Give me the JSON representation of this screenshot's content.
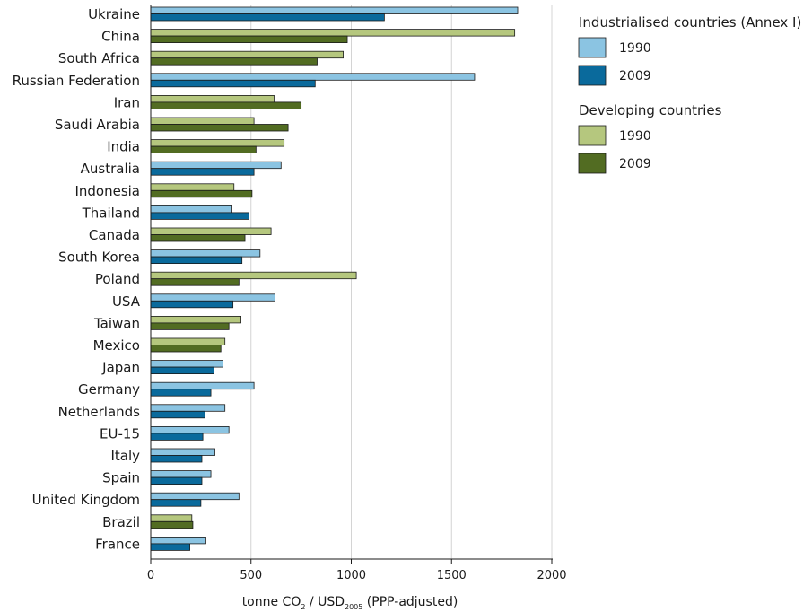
{
  "chart_data": {
    "type": "bar",
    "orientation": "horizontal",
    "categories": [
      "Ukraine",
      "China",
      "South Africa",
      "Russian Federation",
      "Iran",
      "Saudi Arabia",
      "India",
      "Australia",
      "Indonesia",
      "Thailand",
      "Canada",
      "South Korea",
      "Poland",
      "USA",
      "Taiwan",
      "Mexico",
      "Japan",
      "Germany",
      "Netherlands",
      "EU-15",
      "Italy",
      "Spain",
      "United Kingdom",
      "Brazil",
      "France"
    ],
    "group": [
      "I",
      "D",
      "D",
      "I",
      "D",
      "D",
      "D",
      "I",
      "D",
      "I",
      "D",
      "I",
      "D",
      "I",
      "D",
      "D",
      "I",
      "I",
      "I",
      "I",
      "I",
      "I",
      "I",
      "D",
      "I"
    ],
    "series": [
      {
        "name": "1990",
        "values": [
          1830,
          1815,
          960,
          1615,
          615,
          515,
          665,
          650,
          415,
          405,
          600,
          545,
          1025,
          620,
          450,
          370,
          360,
          515,
          370,
          390,
          320,
          300,
          440,
          205,
          275
        ]
      },
      {
        "name": "2009",
        "values": [
          1165,
          980,
          830,
          820,
          750,
          685,
          525,
          515,
          505,
          490,
          470,
          455,
          440,
          410,
          390,
          350,
          315,
          300,
          270,
          260,
          255,
          255,
          250,
          210,
          195
        ]
      }
    ],
    "xlim": [
      0,
      2000
    ],
    "xticks": [
      0,
      500,
      1000,
      1500,
      2000
    ],
    "xlabel": {
      "pre": "tonne CO",
      "sub1": "2",
      "mid": " / USD",
      "sub2": "2005",
      "post": " (PPP-adjusted)"
    },
    "grid": "vertical",
    "legend": {
      "placement": "top-right",
      "groups": [
        {
          "title": "Industrialised countries (Annex I)",
          "items": [
            {
              "label": "1990",
              "color": "#8bc4e2"
            },
            {
              "label": "2009",
              "color": "#0a6a9c"
            }
          ]
        },
        {
          "title": "Developing countries",
          "items": [
            {
              "label": "1990",
              "color": "#b5c77e"
            },
            {
              "label": "2009",
              "color": "#526c22"
            }
          ]
        }
      ]
    },
    "colors": {
      "I": {
        "1990": "#8bc4e2",
        "2009": "#0a6a9c"
      },
      "D": {
        "1990": "#b5c77e",
        "2009": "#526c22"
      }
    }
  }
}
